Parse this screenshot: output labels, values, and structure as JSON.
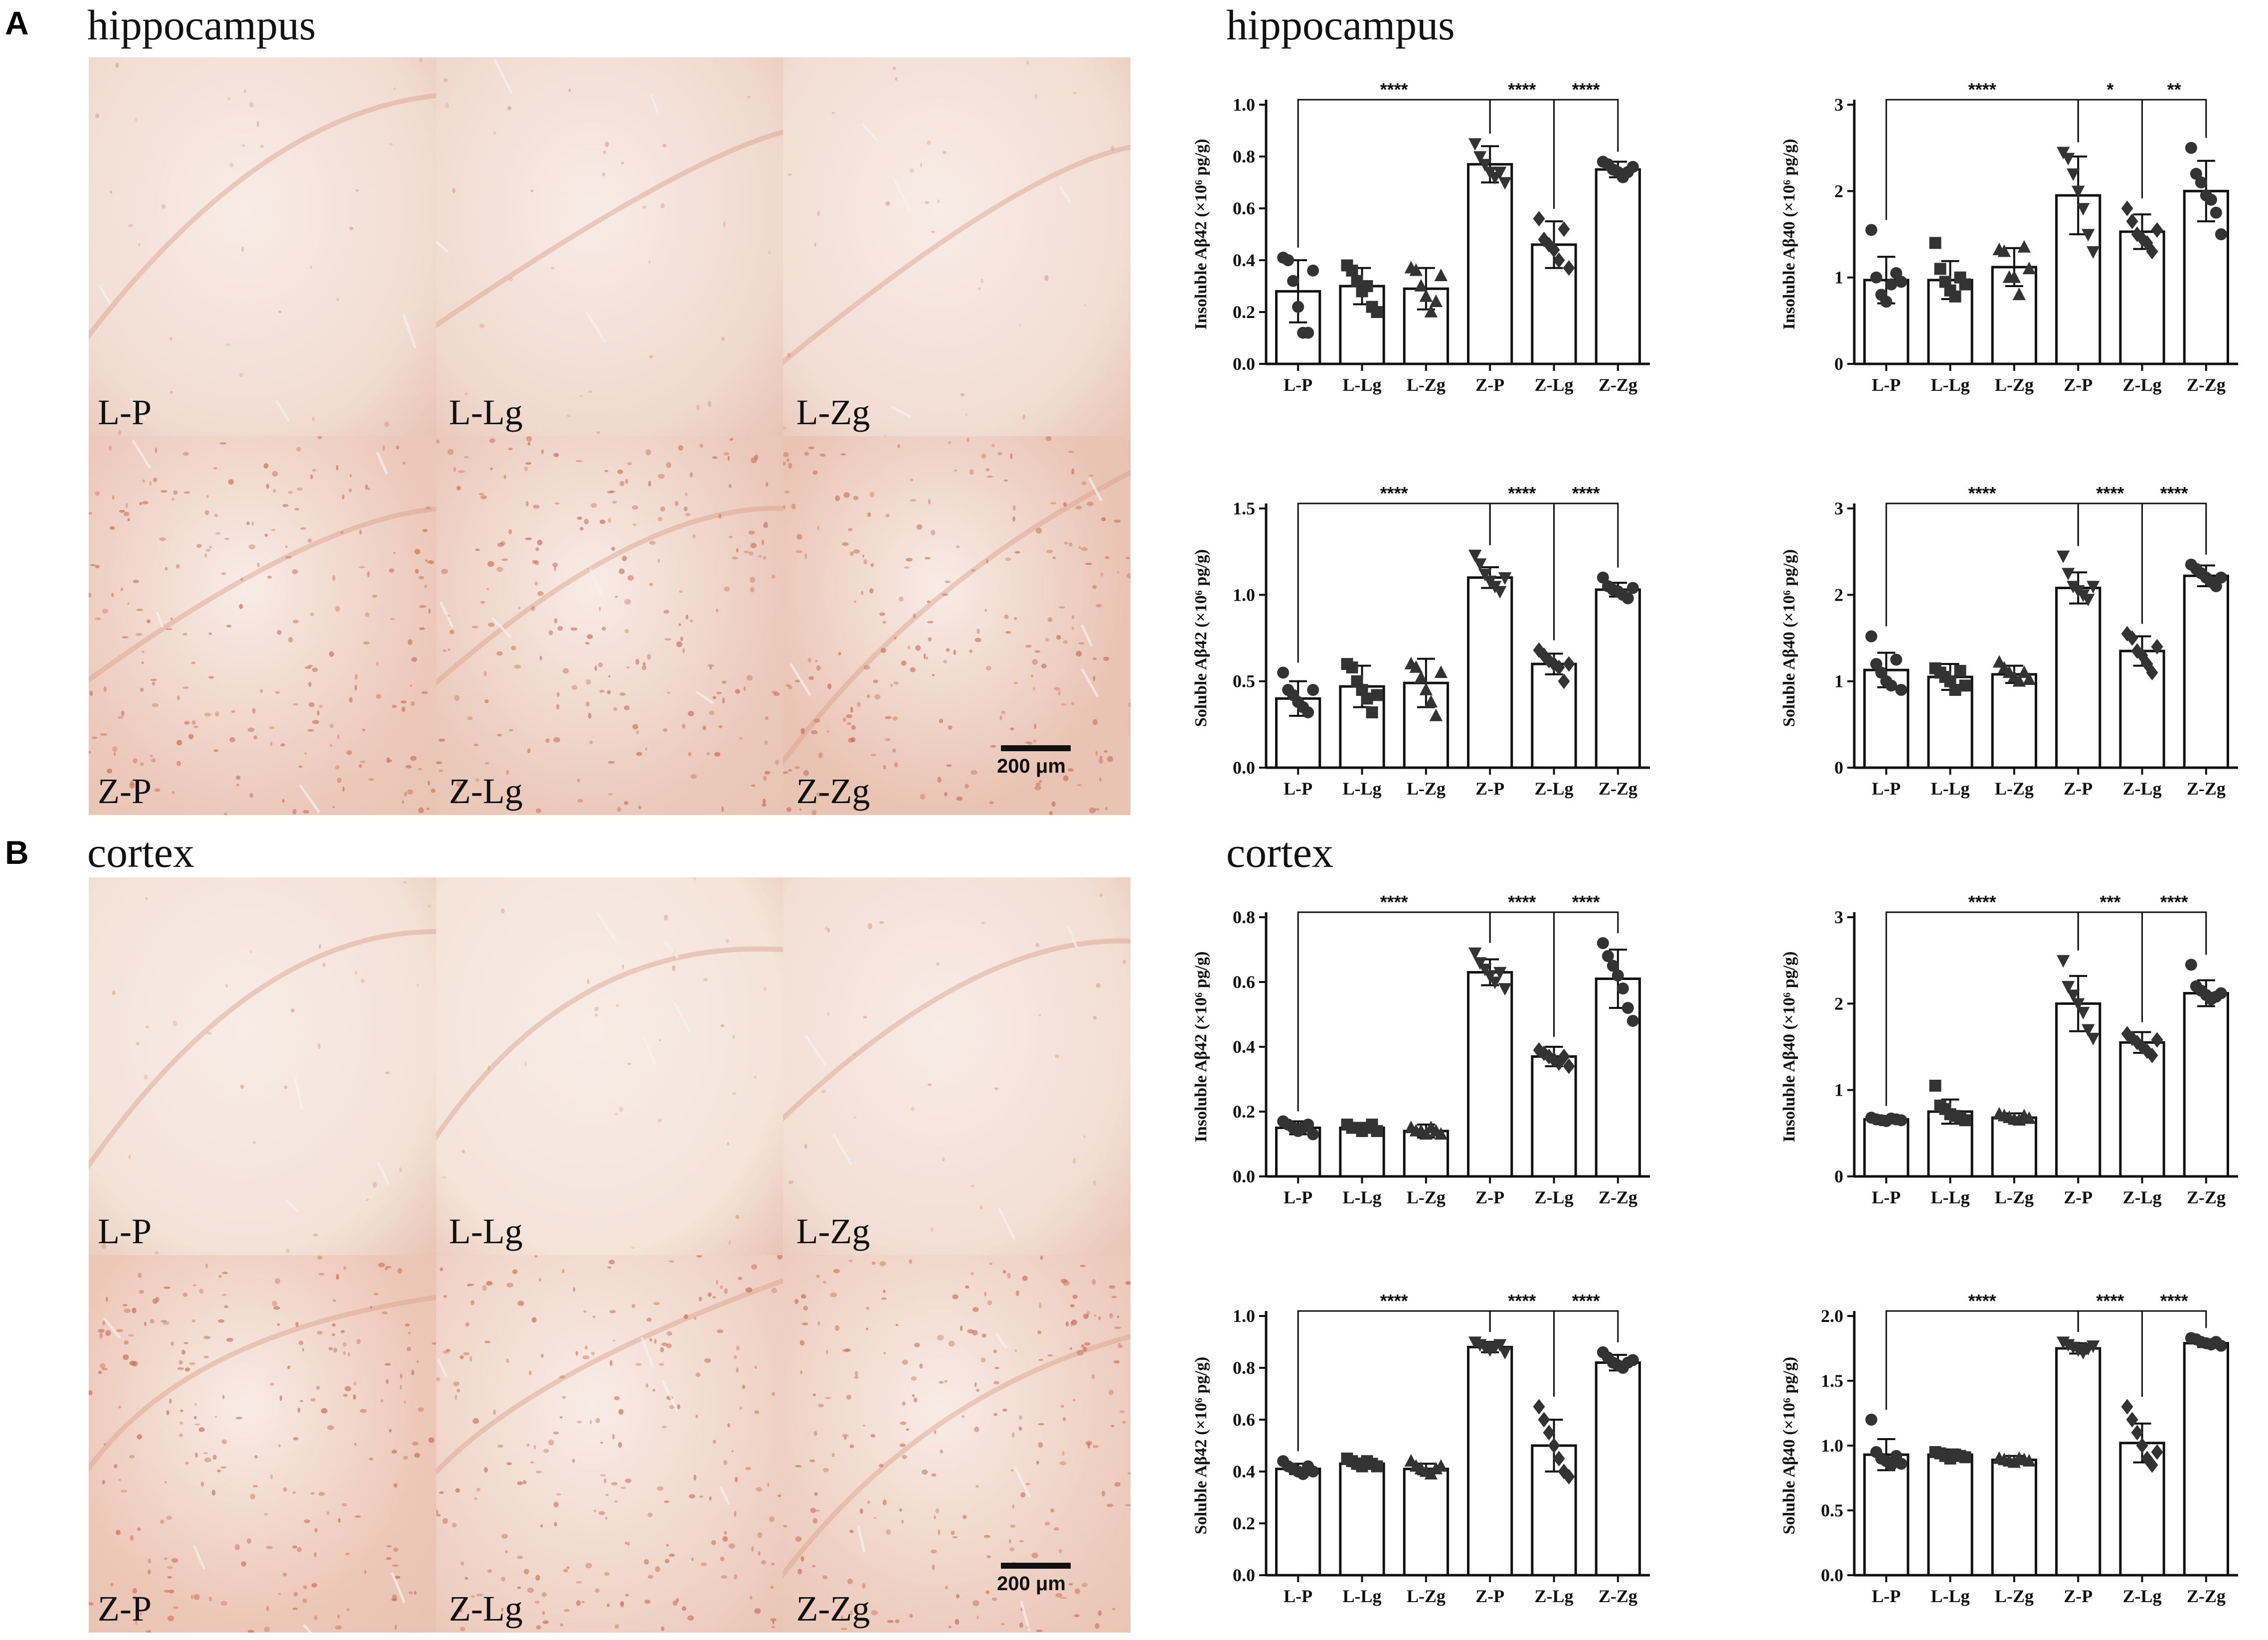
{
  "panels": [
    {
      "letter": "A",
      "micro_title": "hippocampus",
      "chart_title": "hippocampus",
      "tiles": [
        {
          "label": "L-P",
          "shade": "#f1dcd2",
          "cells": false
        },
        {
          "label": "L-Lg",
          "shade": "#f0d9cf",
          "cells": false
        },
        {
          "label": "L-Zg",
          "shade": "#f1ddd3",
          "cells": false
        },
        {
          "label": "Z-P",
          "shade": "#ecc9bb",
          "cells": true
        },
        {
          "label": "Z-Lg",
          "shade": "#ebcabc",
          "cells": true
        },
        {
          "label": "Z-Zg",
          "shade": "#e9c3b3",
          "cells": true
        }
      ],
      "scale_label": "200 μm"
    },
    {
      "letter": "B",
      "micro_title": "cortex",
      "chart_title": "cortex",
      "tiles": [
        {
          "label": "L-P",
          "shade": "#f3e2d8",
          "cells": false
        },
        {
          "label": "L-Lg",
          "shade": "#f4e4da",
          "cells": false
        },
        {
          "label": "L-Zg",
          "shade": "#f2ded4",
          "cells": false
        },
        {
          "label": "Z-P",
          "shade": "#ecc6b6",
          "cells": true
        },
        {
          "label": "Z-Lg",
          "shade": "#efd2c5",
          "cells": true
        },
        {
          "label": "Z-Zg",
          "shade": "#edcdbf",
          "cells": true
        }
      ],
      "scale_label": "200 μm"
    }
  ],
  "chart_data": [
    {
      "type": "bar",
      "panel": "A",
      "region": "hippocampus",
      "ylabel": "Insoluble Aβ42 (×10⁶ pg/g)",
      "categories": [
        "L-P",
        "L-Lg",
        "L-Zg",
        "Z-P",
        "Z-Lg",
        "Z-Zg"
      ],
      "values": [
        0.28,
        0.3,
        0.29,
        0.77,
        0.46,
        0.75
      ],
      "sd": [
        0.12,
        0.07,
        0.08,
        0.07,
        0.09,
        0.03
      ],
      "markers": [
        "circle",
        "square",
        "triangle",
        "triangle-down",
        "diamond",
        "circle"
      ],
      "points": [
        [
          0.41,
          0.4,
          0.32,
          0.22,
          0.12,
          0.12,
          0.36
        ],
        [
          0.38,
          0.36,
          0.32,
          0.28,
          0.3,
          0.22,
          0.2
        ],
        [
          0.37,
          0.36,
          0.3,
          0.26,
          0.2,
          0.24,
          0.34
        ],
        [
          0.85,
          0.8,
          0.77,
          0.74,
          0.72,
          0.74,
          0.7
        ],
        [
          0.56,
          0.48,
          0.46,
          0.44,
          0.4,
          0.52,
          0.37
        ],
        [
          0.78,
          0.77,
          0.75,
          0.74,
          0.72,
          0.74,
          0.76
        ]
      ],
      "ylim": [
        0,
        1.0
      ],
      "yticks": [
        "0.0",
        "0.2",
        "0.4",
        "0.6",
        "0.8",
        "1.0"
      ],
      "significance": [
        {
          "from": 0,
          "to": 3,
          "label": "****"
        },
        {
          "from": 3,
          "to": 4,
          "label": "****"
        },
        {
          "from": 4,
          "to": 5,
          "label": "****"
        }
      ]
    },
    {
      "type": "bar",
      "panel": "A",
      "region": "hippocampus",
      "ylabel": "Insoluble Aβ40 (×10⁶ pg/g)",
      "categories": [
        "L-P",
        "L-Lg",
        "L-Zg",
        "Z-P",
        "Z-Lg",
        "Z-Zg"
      ],
      "values": [
        0.97,
        0.97,
        1.12,
        1.95,
        1.53,
        2.0
      ],
      "sd": [
        0.27,
        0.22,
        0.22,
        0.45,
        0.2,
        0.35
      ],
      "markers": [
        "circle",
        "square",
        "triangle",
        "triangle-down",
        "diamond",
        "circle"
      ],
      "points": [
        [
          1.55,
          1.0,
          0.8,
          0.72,
          0.92,
          1.05,
          0.95
        ],
        [
          1.4,
          1.1,
          0.95,
          0.85,
          0.78,
          1.0,
          0.92
        ],
        [
          1.32,
          1.3,
          1.0,
          1.0,
          0.8,
          1.35,
          1.1
        ],
        [
          2.45,
          2.38,
          2.2,
          2.0,
          1.8,
          1.5,
          1.3
        ],
        [
          1.8,
          1.65,
          1.5,
          1.45,
          1.4,
          1.3,
          1.55
        ],
        [
          2.5,
          2.2,
          2.1,
          1.95,
          1.9,
          1.75,
          1.5
        ]
      ],
      "ylim": [
        0,
        3
      ],
      "yticks": [
        "0",
        "1",
        "2",
        "3"
      ],
      "significance": [
        {
          "from": 0,
          "to": 3,
          "label": "****"
        },
        {
          "from": 3,
          "to": 4,
          "label": "*"
        },
        {
          "from": 4,
          "to": 5,
          "label": "**"
        }
      ]
    },
    {
      "type": "bar",
      "panel": "A",
      "region": "hippocampus",
      "ylabel": "Soluble Aβ42 (×10⁶ pg/g)",
      "categories": [
        "L-P",
        "L-Lg",
        "L-Zg",
        "Z-P",
        "Z-Lg",
        "Z-Zg"
      ],
      "values": [
        0.4,
        0.47,
        0.49,
        1.1,
        0.6,
        1.03
      ],
      "sd": [
        0.1,
        0.12,
        0.14,
        0.06,
        0.06,
        0.04
      ],
      "markers": [
        "circle",
        "square",
        "triangle",
        "triangle-down",
        "diamond",
        "circle"
      ],
      "points": [
        [
          0.55,
          0.45,
          0.42,
          0.38,
          0.35,
          0.32,
          0.45
        ],
        [
          0.6,
          0.58,
          0.5,
          0.45,
          0.4,
          0.32,
          0.42
        ],
        [
          0.6,
          0.58,
          0.52,
          0.45,
          0.38,
          0.3,
          0.55
        ],
        [
          1.23,
          1.18,
          1.12,
          1.08,
          1.05,
          1.02,
          1.1
        ],
        [
          0.68,
          0.65,
          0.62,
          0.6,
          0.58,
          0.5,
          0.6
        ],
        [
          1.1,
          1.05,
          1.03,
          1.02,
          1.0,
          0.98,
          1.04
        ]
      ],
      "ylim": [
        0,
        1.5
      ],
      "yticks": [
        "0.0",
        "0.5",
        "1.0",
        "1.5"
      ],
      "significance": [
        {
          "from": 0,
          "to": 3,
          "label": "****"
        },
        {
          "from": 3,
          "to": 4,
          "label": "****"
        },
        {
          "from": 4,
          "to": 5,
          "label": "****"
        }
      ]
    },
    {
      "type": "bar",
      "panel": "A",
      "region": "hippocampus",
      "ylabel": "Soluble Aβ40 (×10⁶ pg/g)",
      "categories": [
        "L-P",
        "L-Lg",
        "L-Zg",
        "Z-P",
        "Z-Lg",
        "Z-Zg"
      ],
      "values": [
        1.13,
        1.05,
        1.08,
        2.08,
        1.35,
        2.22
      ],
      "sd": [
        0.2,
        0.15,
        0.1,
        0.18,
        0.17,
        0.12
      ],
      "markers": [
        "circle",
        "square",
        "triangle",
        "triangle-down",
        "diamond",
        "circle"
      ],
      "points": [
        [
          1.52,
          1.2,
          1.1,
          1.0,
          0.95,
          1.25,
          0.9
        ],
        [
          1.15,
          1.1,
          1.05,
          1.0,
          0.9,
          1.12,
          0.95
        ],
        [
          1.22,
          1.15,
          1.1,
          1.05,
          1.0,
          1.1,
          1.02
        ],
        [
          2.45,
          2.25,
          2.1,
          2.05,
          2.0,
          1.95,
          2.1
        ],
        [
          1.55,
          1.5,
          1.35,
          1.3,
          1.2,
          1.1,
          1.4
        ],
        [
          2.35,
          2.3,
          2.25,
          2.2,
          2.15,
          2.1,
          2.2
        ]
      ],
      "ylim": [
        0,
        3
      ],
      "yticks": [
        "0",
        "1",
        "2",
        "3"
      ],
      "significance": [
        {
          "from": 0,
          "to": 3,
          "label": "****"
        },
        {
          "from": 3,
          "to": 4,
          "label": "****"
        },
        {
          "from": 4,
          "to": 5,
          "label": "****"
        }
      ]
    },
    {
      "type": "bar",
      "panel": "B",
      "region": "cortex",
      "ylabel": "Insoluble Aβ42 (×10⁶ pg/g)",
      "categories": [
        "L-P",
        "L-Lg",
        "L-Zg",
        "Z-P",
        "Z-Lg",
        "Z-Zg"
      ],
      "values": [
        0.15,
        0.15,
        0.14,
        0.63,
        0.37,
        0.61
      ],
      "sd": [
        0.02,
        0.01,
        0.02,
        0.04,
        0.03,
        0.09
      ],
      "markers": [
        "circle",
        "square",
        "triangle",
        "triangle-down",
        "diamond",
        "circle"
      ],
      "points": [
        [
          0.17,
          0.16,
          0.15,
          0.14,
          0.15,
          0.16,
          0.13
        ],
        [
          0.16,
          0.15,
          0.15,
          0.14,
          0.15,
          0.16,
          0.14
        ],
        [
          0.15,
          0.14,
          0.14,
          0.13,
          0.15,
          0.14,
          0.13
        ],
        [
          0.69,
          0.66,
          0.64,
          0.62,
          0.6,
          0.63,
          0.58
        ],
        [
          0.39,
          0.38,
          0.37,
          0.36,
          0.35,
          0.37,
          0.34
        ],
        [
          0.72,
          0.68,
          0.65,
          0.62,
          0.58,
          0.52,
          0.48
        ]
      ],
      "ylim": [
        0,
        0.8
      ],
      "yticks": [
        "0.0",
        "0.2",
        "0.4",
        "0.6",
        "0.8"
      ],
      "significance": [
        {
          "from": 0,
          "to": 3,
          "label": "****"
        },
        {
          "from": 3,
          "to": 4,
          "label": "****"
        },
        {
          "from": 4,
          "to": 5,
          "label": "****"
        }
      ]
    },
    {
      "type": "bar",
      "panel": "B",
      "region": "cortex",
      "ylabel": "Insoluble Aβ40 (×10⁶ pg/g)",
      "categories": [
        "L-P",
        "L-Lg",
        "L-Zg",
        "Z-P",
        "Z-Lg",
        "Z-Zg"
      ],
      "values": [
        0.66,
        0.75,
        0.68,
        2.0,
        1.55,
        2.12
      ],
      "sd": [
        0.04,
        0.14,
        0.05,
        0.32,
        0.12,
        0.15
      ],
      "markers": [
        "circle",
        "square",
        "triangle",
        "triangle-down",
        "diamond",
        "circle"
      ],
      "points": [
        [
          0.68,
          0.66,
          0.65,
          0.64,
          0.67,
          0.66,
          0.65
        ],
        [
          1.05,
          0.82,
          0.78,
          0.72,
          0.7,
          0.68,
          0.65
        ],
        [
          0.72,
          0.7,
          0.68,
          0.66,
          0.65,
          0.7,
          0.67
        ],
        [
          2.5,
          2.2,
          2.1,
          2.0,
          1.9,
          1.7,
          1.6
        ],
        [
          1.65,
          1.6,
          1.55,
          1.5,
          1.45,
          1.4,
          1.58
        ],
        [
          2.45,
          2.2,
          2.15,
          2.1,
          2.05,
          2.08,
          2.12
        ]
      ],
      "ylim": [
        0,
        3
      ],
      "yticks": [
        "0",
        "1",
        "2",
        "3"
      ],
      "significance": [
        {
          "from": 0,
          "to": 3,
          "label": "****"
        },
        {
          "from": 3,
          "to": 4,
          "label": "***"
        },
        {
          "from": 4,
          "to": 5,
          "label": "****"
        }
      ]
    },
    {
      "type": "bar",
      "panel": "B",
      "region": "cortex",
      "ylabel": "Soluble Aβ42 (×10⁶ pg/g)",
      "categories": [
        "L-P",
        "L-Lg",
        "L-Zg",
        "Z-P",
        "Z-Lg",
        "Z-Zg"
      ],
      "values": [
        0.41,
        0.43,
        0.41,
        0.88,
        0.5,
        0.82
      ],
      "sd": [
        0.02,
        0.02,
        0.02,
        0.02,
        0.1,
        0.03
      ],
      "markers": [
        "circle",
        "square",
        "triangle",
        "triangle-down",
        "diamond",
        "circle"
      ],
      "points": [
        [
          0.44,
          0.42,
          0.41,
          0.4,
          0.39,
          0.42,
          0.4
        ],
        [
          0.45,
          0.44,
          0.43,
          0.42,
          0.44,
          0.43,
          0.42
        ],
        [
          0.44,
          0.42,
          0.41,
          0.4,
          0.39,
          0.41,
          0.42
        ],
        [
          0.9,
          0.89,
          0.88,
          0.87,
          0.88,
          0.89,
          0.86
        ],
        [
          0.65,
          0.6,
          0.55,
          0.5,
          0.45,
          0.4,
          0.38
        ],
        [
          0.86,
          0.84,
          0.82,
          0.81,
          0.8,
          0.82,
          0.83
        ]
      ],
      "ylim": [
        0,
        1.0
      ],
      "yticks": [
        "0.0",
        "0.2",
        "0.4",
        "0.6",
        "0.8",
        "1.0"
      ],
      "significance": [
        {
          "from": 0,
          "to": 3,
          "label": "****"
        },
        {
          "from": 3,
          "to": 4,
          "label": "****"
        },
        {
          "from": 4,
          "to": 5,
          "label": "****"
        }
      ]
    },
    {
      "type": "bar",
      "panel": "B",
      "region": "cortex",
      "ylabel": "Soluble Aβ40 (×10⁶ pg/g)",
      "categories": [
        "L-P",
        "L-Lg",
        "L-Zg",
        "Z-P",
        "Z-Lg",
        "Z-Zg"
      ],
      "values": [
        0.93,
        0.93,
        0.89,
        1.75,
        1.02,
        1.79
      ],
      "sd": [
        0.12,
        0.04,
        0.03,
        0.04,
        0.15,
        0.03
      ],
      "markers": [
        "circle",
        "square",
        "triangle",
        "triangle-down",
        "diamond",
        "circle"
      ],
      "points": [
        [
          1.2,
          0.95,
          0.9,
          0.88,
          0.85,
          0.92,
          0.86
        ],
        [
          0.95,
          0.94,
          0.92,
          0.9,
          0.93,
          0.92,
          0.91
        ],
        [
          0.9,
          0.89,
          0.88,
          0.87,
          0.9,
          0.89,
          0.88
        ],
        [
          1.8,
          1.78,
          1.76,
          1.74,
          1.72,
          1.75,
          1.77
        ],
        [
          1.3,
          1.2,
          1.1,
          1.0,
          0.9,
          0.85,
          0.95
        ],
        [
          1.83,
          1.82,
          1.8,
          1.79,
          1.78,
          1.8,
          1.77
        ]
      ],
      "ylim": [
        0,
        2.0
      ],
      "yticks": [
        "0.0",
        "0.5",
        "1.0",
        "1.5",
        "2.0"
      ],
      "significance": [
        {
          "from": 0,
          "to": 3,
          "label": "****"
        },
        {
          "from": 3,
          "to": 4,
          "label": "****"
        },
        {
          "from": 4,
          "to": 5,
          "label": "****"
        }
      ]
    }
  ]
}
